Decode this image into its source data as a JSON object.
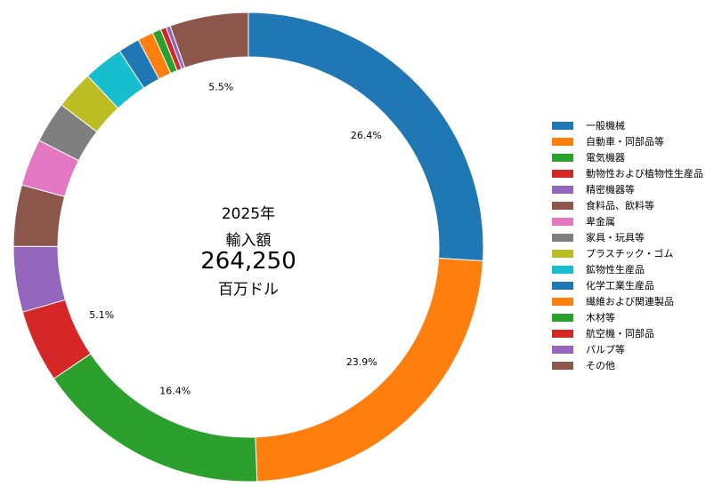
{
  "center": {
    "year": "2025年",
    "label": "輸入額",
    "value": "264,250",
    "unit": "百万ドル"
  },
  "chart_data": {
    "type": "donut",
    "categories": [
      "一般機械",
      "自動車・同部品等",
      "電気機器",
      "動物性および植物性生産品",
      "精密機器等",
      "食料品、飲料等",
      "卑金属",
      "家具・玩具等",
      "プラスチック・ゴム",
      "鉱物性生産品",
      "化学工業生産品",
      "繊維および関連製品",
      "木材等",
      "航空機・同部品",
      "パルプ等",
      "その他"
    ],
    "values": [
      26.4,
      23.9,
      16.4,
      5.1,
      4.6,
      4.3,
      3.3,
      2.9,
      2.7,
      2.8,
      1.5,
      1.1,
      0.6,
      0.4,
      0.3,
      5.5
    ],
    "colors": [
      "#1f77b4",
      "#ff7f0e",
      "#2ca02c",
      "#d62728",
      "#9467bd",
      "#8c564b",
      "#e377c2",
      "#7f7f7f",
      "#bcbd22",
      "#17becf",
      "#1f77b4",
      "#ff7f0e",
      "#2ca02c",
      "#d62728",
      "#9467bd",
      "#8c564b"
    ],
    "data_labels": [
      "26.4%",
      "23.9%",
      "16.4%",
      "5.1%",
      "",
      "",
      "",
      "",
      "",
      "",
      "",
      "",
      "",
      "",
      "",
      "5.5%"
    ],
    "legend_position": "right"
  }
}
